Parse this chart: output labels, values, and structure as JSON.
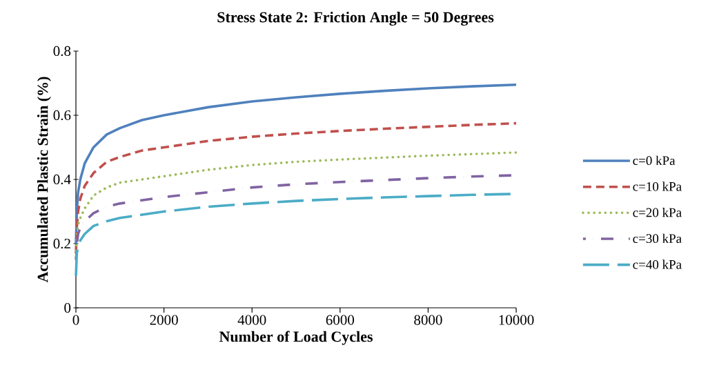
{
  "chart_data": {
    "type": "line",
    "title": "Stress State 2: Friction Angle = 50 Degrees",
    "xlabel": "Number of Load Cycles",
    "ylabel": "Accumulated Plastic Strain (%)",
    "xlim": [
      0,
      10000
    ],
    "ylim": [
      0,
      0.8
    ],
    "xticks": [
      0,
      2000,
      4000,
      6000,
      8000,
      10000
    ],
    "yticks": [
      0,
      0.2,
      0.4,
      0.6,
      0.8
    ],
    "grid": false,
    "legend": "right",
    "marker": "none",
    "series": [
      {
        "name": "c=0 kPa",
        "color": "#4f81bd",
        "line_style": "solid",
        "x": [
          1,
          20,
          50,
          100,
          200,
          400,
          700,
          1000,
          1500,
          2000,
          3000,
          4000,
          5000,
          6000,
          7000,
          8000,
          9000,
          10000
        ],
        "values": [
          0.2,
          0.3,
          0.36,
          0.4,
          0.45,
          0.5,
          0.54,
          0.56,
          0.585,
          0.6,
          0.625,
          0.643,
          0.656,
          0.667,
          0.676,
          0.684,
          0.69,
          0.695
        ]
      },
      {
        "name": "c=10 kPa",
        "color": "#c0504d",
        "line_style": "dashed",
        "x": [
          1,
          20,
          50,
          100,
          200,
          400,
          700,
          1000,
          1500,
          2000,
          3000,
          4000,
          5000,
          6000,
          7000,
          8000,
          9000,
          10000
        ],
        "values": [
          0.17,
          0.25,
          0.3,
          0.34,
          0.38,
          0.42,
          0.455,
          0.47,
          0.49,
          0.5,
          0.52,
          0.533,
          0.543,
          0.551,
          0.558,
          0.564,
          0.57,
          0.575
        ]
      },
      {
        "name": "c=20 kPa",
        "color": "#9bbb59",
        "line_style": "dotted",
        "x": [
          1,
          20,
          50,
          100,
          200,
          400,
          700,
          1000,
          1500,
          2000,
          3000,
          4000,
          5000,
          6000,
          7000,
          8000,
          9000,
          10000
        ],
        "values": [
          0.16,
          0.22,
          0.26,
          0.28,
          0.31,
          0.35,
          0.375,
          0.39,
          0.4,
          0.41,
          0.43,
          0.445,
          0.455,
          0.462,
          0.468,
          0.474,
          0.479,
          0.484
        ]
      },
      {
        "name": "c=30 kPa",
        "color": "#8064a2",
        "line_style": "dashdot",
        "x": [
          1,
          20,
          50,
          100,
          200,
          400,
          700,
          1000,
          2000,
          3000,
          4000,
          5000,
          6000,
          7000,
          8000,
          9000,
          10000
        ],
        "values": [
          0.15,
          0.2,
          0.23,
          0.25,
          0.27,
          0.295,
          0.315,
          0.325,
          0.345,
          0.36,
          0.375,
          0.385,
          0.392,
          0.398,
          0.404,
          0.409,
          0.413
        ]
      },
      {
        "name": "c=40 kPa",
        "color": "#4bacc6",
        "line_style": "longdash",
        "x": [
          1,
          20,
          50,
          100,
          200,
          400,
          700,
          1000,
          2000,
          3000,
          4000,
          5000,
          6000,
          7000,
          8000,
          9000,
          10000
        ],
        "values": [
          0.1,
          0.17,
          0.19,
          0.21,
          0.23,
          0.255,
          0.27,
          0.28,
          0.3,
          0.315,
          0.325,
          0.333,
          0.339,
          0.344,
          0.348,
          0.352,
          0.355
        ]
      }
    ]
  }
}
